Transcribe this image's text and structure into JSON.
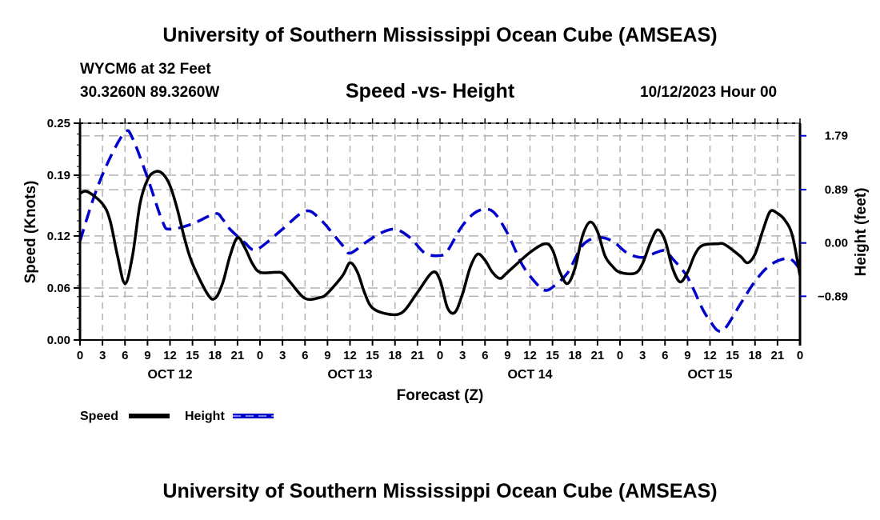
{
  "header": {
    "title": "University of Southern Mississippi Ocean Cube (AMSEAS)",
    "station": "WYCM6 at 32 Feet",
    "coords": "30.3260N  89.3260W",
    "subtitle": "Speed -vs- Height",
    "date": "10/12/2023 Hour 00"
  },
  "footer": {
    "title": "University of Southern Mississippi Ocean Cube (AMSEAS)"
  },
  "colors": {
    "speed": "#000000",
    "height": "#0000cc",
    "grid": "#b4b4b4"
  },
  "chart_data": {
    "type": "line",
    "title": "Speed -vs- Height",
    "xlabel": "Forecast (Z)",
    "ylabel": "Speed (Knots)",
    "y2label": "Height (feet)",
    "xlim": [
      0,
      96
    ],
    "ylim": [
      0,
      0.25
    ],
    "y2lim": [
      -1.62,
      2.0
    ],
    "grid": true,
    "legend_position": "bottom-left",
    "x_tick_labels": [
      "0",
      "3",
      "6",
      "9",
      "12",
      "15",
      "18",
      "21",
      "0",
      "3",
      "6",
      "9",
      "12",
      "15",
      "18",
      "21",
      "0",
      "3",
      "6",
      "9",
      "12",
      "15",
      "18",
      "21",
      "0",
      "3",
      "6",
      "9",
      "12",
      "15",
      "18",
      "21",
      "0"
    ],
    "day_labels": [
      {
        "label": "OCT 12",
        "hour": 12
      },
      {
        "label": "OCT 13",
        "hour": 36
      },
      {
        "label": "OCT 14",
        "hour": 60
      },
      {
        "label": "OCT 15",
        "hour": 84
      }
    ],
    "y_ticks": [
      0.0,
      0.06,
      0.12,
      0.19,
      0.25
    ],
    "y_tick_labels": [
      "0.00",
      "0.06",
      "0.12",
      "0.19",
      "0.25"
    ],
    "y2_ticks": [
      -0.89,
      0.0,
      0.89,
      1.79
    ],
    "y2_tick_labels": [
      "−0.89",
      "0.00",
      "0.89",
      "1.79"
    ],
    "series": [
      {
        "name": "Speed",
        "axis": "left",
        "style": "solid",
        "x": [
          0,
          1,
          3,
          4,
          5,
          6,
          7,
          8,
          9,
          10,
          11,
          12,
          13,
          14,
          15,
          17,
          18,
          19,
          20,
          21,
          22,
          23,
          24,
          26,
          27,
          28,
          30,
          32,
          33,
          35,
          36,
          37,
          38,
          39,
          41,
          43,
          45,
          47,
          48,
          49,
          50,
          51,
          52,
          53,
          54,
          55,
          56,
          57,
          60,
          62,
          63,
          64,
          65,
          66,
          67,
          68,
          69,
          70,
          71,
          72,
          74,
          75,
          76,
          77,
          78,
          79,
          80,
          81,
          82,
          83,
          85,
          86,
          88,
          89,
          90,
          91,
          92,
          93,
          94,
          95,
          96
        ],
        "values": [
          0.169,
          0.171,
          0.157,
          0.138,
          0.097,
          0.065,
          0.097,
          0.157,
          0.185,
          0.194,
          0.192,
          0.178,
          0.15,
          0.115,
          0.088,
          0.053,
          0.048,
          0.065,
          0.097,
          0.118,
          0.106,
          0.088,
          0.078,
          0.078,
          0.077,
          0.067,
          0.048,
          0.049,
          0.054,
          0.074,
          0.089,
          0.078,
          0.053,
          0.037,
          0.03,
          0.032,
          0.055,
          0.078,
          0.069,
          0.037,
          0.032,
          0.053,
          0.083,
          0.099,
          0.092,
          0.078,
          0.071,
          0.078,
          0.101,
          0.111,
          0.104,
          0.078,
          0.065,
          0.083,
          0.12,
          0.136,
          0.125,
          0.097,
          0.085,
          0.078,
          0.077,
          0.088,
          0.111,
          0.127,
          0.115,
          0.083,
          0.067,
          0.078,
          0.099,
          0.109,
          0.111,
          0.11,
          0.097,
          0.089,
          0.099,
          0.125,
          0.148,
          0.146,
          0.138,
          0.12,
          0.074
        ]
      },
      {
        "name": "Height",
        "axis": "right",
        "style": "dashed",
        "x": [
          0,
          2,
          4,
          6,
          7,
          9,
          11,
          12,
          15,
          18,
          19,
          20,
          22,
          23,
          24,
          27,
          30,
          32,
          35,
          36,
          38,
          40,
          42,
          44,
          46,
          48,
          49,
          51,
          53,
          55,
          57,
          59,
          61,
          62,
          63,
          65,
          67,
          69,
          71,
          73,
          75,
          77,
          78,
          79,
          81,
          83,
          84,
          85,
          86,
          88,
          90,
          92,
          94,
          95,
          96
        ],
        "values": [
          0.03,
          0.82,
          1.42,
          1.85,
          1.75,
          1.09,
          0.36,
          0.23,
          0.32,
          0.49,
          0.4,
          0.23,
          0.0,
          -0.11,
          -0.08,
          0.23,
          0.53,
          0.4,
          -0.04,
          -0.17,
          0.0,
          0.16,
          0.23,
          0.09,
          -0.17,
          -0.21,
          -0.13,
          0.29,
          0.53,
          0.53,
          0.16,
          -0.37,
          -0.7,
          -0.79,
          -0.74,
          -0.5,
          -0.04,
          0.09,
          0.03,
          -0.17,
          -0.24,
          -0.15,
          -0.13,
          -0.26,
          -0.57,
          -1.1,
          -1.3,
          -1.46,
          -1.43,
          -1.03,
          -0.64,
          -0.37,
          -0.26,
          -0.29,
          -0.44
        ]
      }
    ]
  }
}
